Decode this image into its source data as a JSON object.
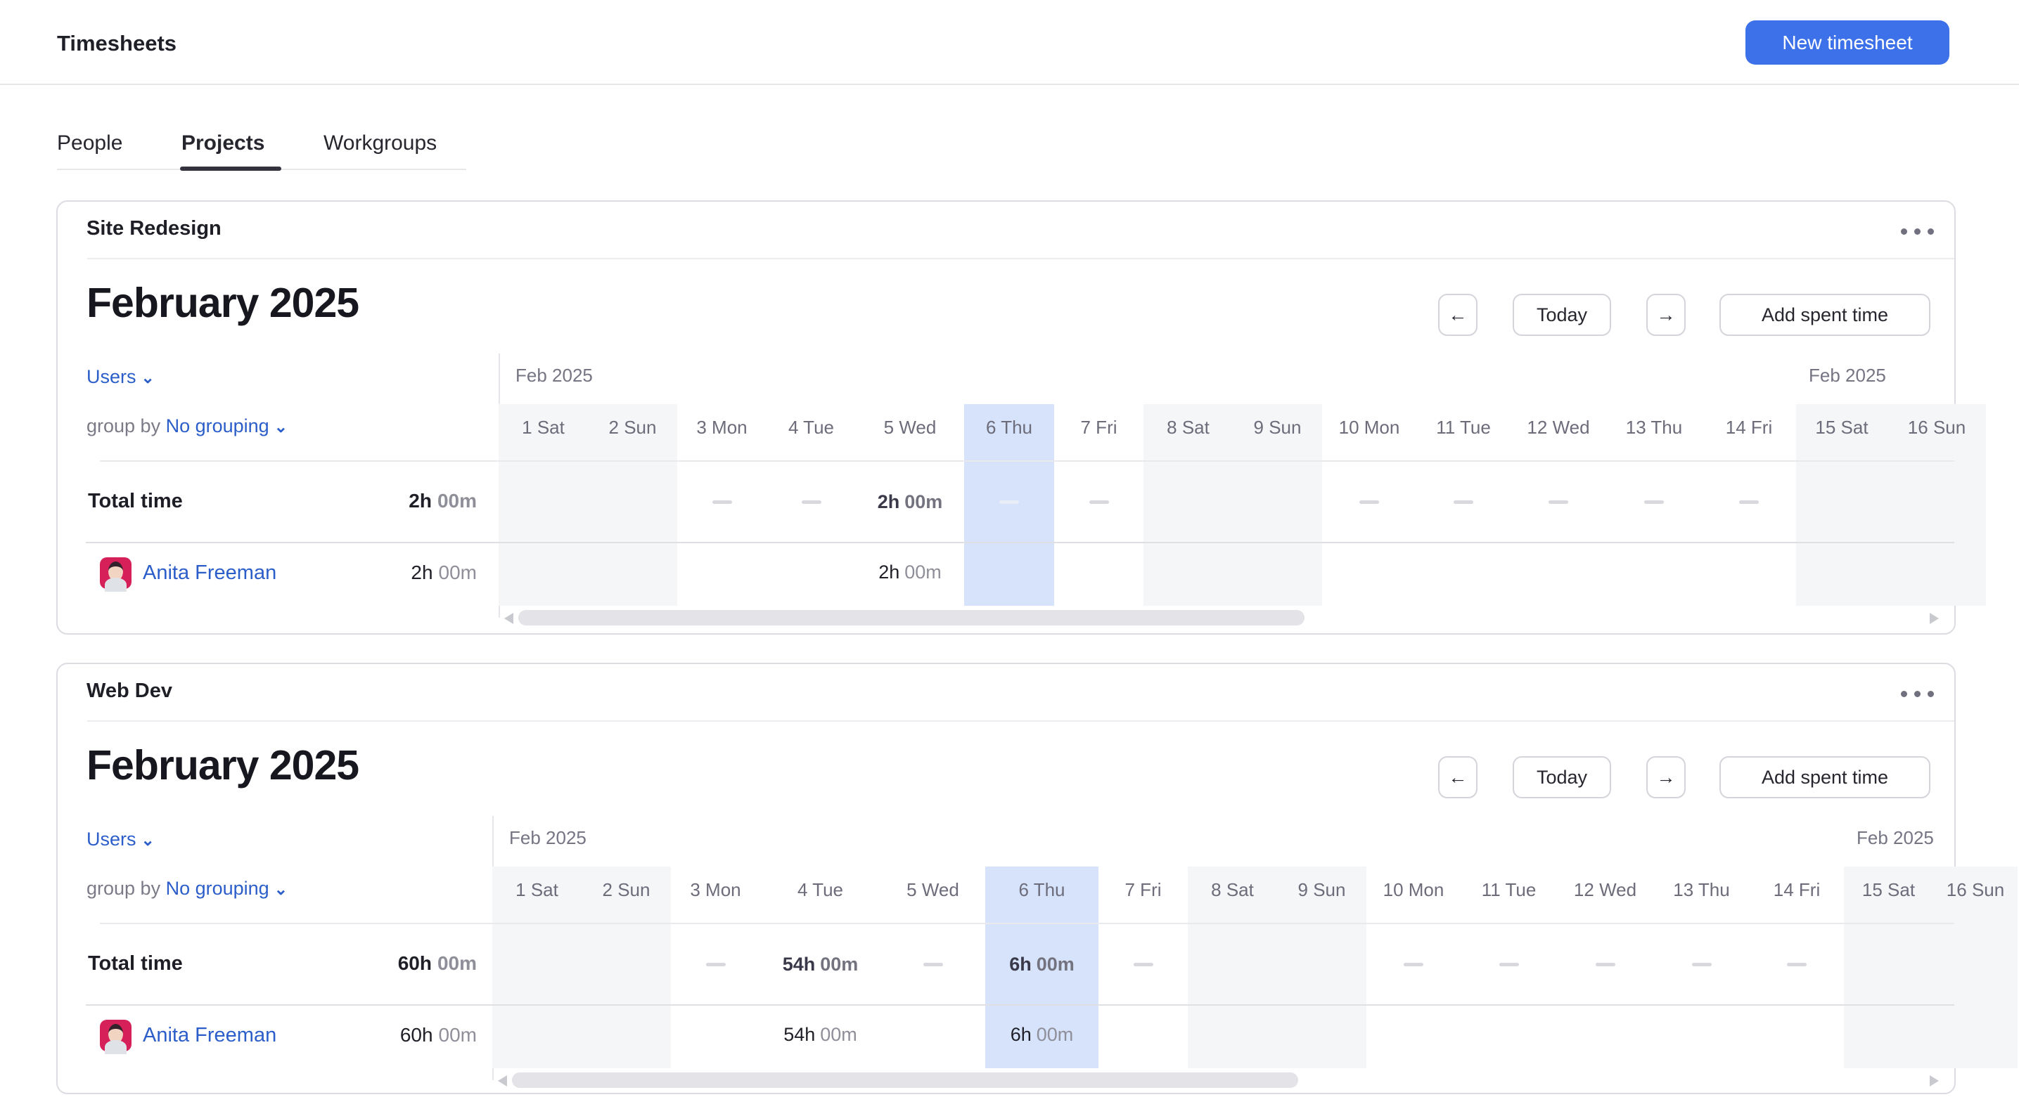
{
  "header": {
    "title": "Timesheets",
    "new_timesheet_label": "New timesheet"
  },
  "tabs": [
    {
      "label": "People",
      "active": false
    },
    {
      "label": "Projects",
      "active": true
    },
    {
      "label": "Workgroups",
      "active": false
    }
  ],
  "icons": {
    "chevron_down": "⌄",
    "prev_arrow": "←",
    "next_arrow": "→",
    "kebab_menu": "⋯"
  },
  "cards": [
    {
      "project": "Site Redesign",
      "month_title": "February 2025",
      "toolbar": {
        "prev_icon": "←",
        "today_label": "Today",
        "next_icon": "→",
        "add_time_label": "Add spent time"
      },
      "filters": {
        "users_label": "Users",
        "group_by_label": "group by",
        "grouping_value": "No grouping"
      },
      "grid": {
        "month_label_left": "Feb 2025",
        "month_label_right": "Feb 2025",
        "days": [
          {
            "label": "1 Sat",
            "weekend": true,
            "today": false
          },
          {
            "label": "2 Sun",
            "weekend": true,
            "today": false
          },
          {
            "label": "3 Mon",
            "weekend": false,
            "today": false
          },
          {
            "label": "4 Tue",
            "weekend": false,
            "today": false
          },
          {
            "label": "5 Wed",
            "weekend": false,
            "today": false
          },
          {
            "label": "6 Thu",
            "weekend": false,
            "today": true
          },
          {
            "label": "7 Fri",
            "weekend": false,
            "today": false
          },
          {
            "label": "8 Sat",
            "weekend": true,
            "today": false
          },
          {
            "label": "9 Sun",
            "weekend": true,
            "today": false
          },
          {
            "label": "10 Mon",
            "weekend": false,
            "today": false
          },
          {
            "label": "11 Tue",
            "weekend": false,
            "today": false
          },
          {
            "label": "12 Wed",
            "weekend": false,
            "today": false
          },
          {
            "label": "13 Thu",
            "weekend": false,
            "today": false
          },
          {
            "label": "14 Fri",
            "weekend": false,
            "today": false
          },
          {
            "label": "15 Sat",
            "weekend": true,
            "today": false
          },
          {
            "label": "16 Sun",
            "weekend": true,
            "today": false
          }
        ],
        "total_row": {
          "label": "Total time",
          "total_hours": "2h",
          "total_minutes": "00m",
          "cells": [
            null,
            null,
            {
              "dash": true
            },
            {
              "dash": true
            },
            {
              "hours": "2h",
              "minutes": "00m"
            },
            {
              "dash": true
            },
            {
              "dash": true
            },
            null,
            null,
            {
              "dash": true
            },
            {
              "dash": true
            },
            {
              "dash": true
            },
            {
              "dash": true
            },
            {
              "dash": true
            },
            null,
            null
          ]
        },
        "user_row": {
          "name": "Anita Freeman",
          "total_hours": "2h",
          "total_minutes": "00m",
          "cells": [
            null,
            null,
            null,
            null,
            {
              "hours": "2h",
              "minutes": "00m"
            },
            null,
            null,
            null,
            null,
            null,
            null,
            null,
            null,
            null,
            null,
            null
          ]
        }
      }
    },
    {
      "project": "Web Dev",
      "month_title": "February 2025",
      "toolbar": {
        "prev_icon": "←",
        "today_label": "Today",
        "next_icon": "→",
        "add_time_label": "Add spent time"
      },
      "filters": {
        "users_label": "Users",
        "group_by_label": "group by",
        "grouping_value": "No grouping"
      },
      "grid": {
        "month_label_left": "Feb 2025",
        "month_label_right": "Feb 2025",
        "days": [
          {
            "label": "1 Sat",
            "weekend": true,
            "today": false
          },
          {
            "label": "2 Sun",
            "weekend": true,
            "today": false
          },
          {
            "label": "3 Mon",
            "weekend": false,
            "today": false
          },
          {
            "label": "4 Tue",
            "weekend": false,
            "today": false
          },
          {
            "label": "5 Wed",
            "weekend": false,
            "today": false
          },
          {
            "label": "6 Thu",
            "weekend": false,
            "today": true
          },
          {
            "label": "7 Fri",
            "weekend": false,
            "today": false
          },
          {
            "label": "8 Sat",
            "weekend": true,
            "today": false
          },
          {
            "label": "9 Sun",
            "weekend": true,
            "today": false
          },
          {
            "label": "10 Mon",
            "weekend": false,
            "today": false
          },
          {
            "label": "11 Tue",
            "weekend": false,
            "today": false
          },
          {
            "label": "12 Wed",
            "weekend": false,
            "today": false
          },
          {
            "label": "13 Thu",
            "weekend": false,
            "today": false
          },
          {
            "label": "14 Fri",
            "weekend": false,
            "today": false
          },
          {
            "label": "15 Sat",
            "weekend": true,
            "today": false
          },
          {
            "label": "16 Sun",
            "weekend": true,
            "today": false
          }
        ],
        "total_row": {
          "label": "Total time",
          "total_hours": "60h",
          "total_minutes": "00m",
          "cells": [
            null,
            null,
            {
              "dash": true
            },
            {
              "hours": "54h",
              "minutes": "00m"
            },
            {
              "dash": true
            },
            {
              "hours": "6h",
              "minutes": "00m"
            },
            {
              "dash": true
            },
            null,
            null,
            {
              "dash": true
            },
            {
              "dash": true
            },
            {
              "dash": true
            },
            {
              "dash": true
            },
            {
              "dash": true
            },
            null,
            null
          ]
        },
        "user_row": {
          "name": "Anita Freeman",
          "total_hours": "60h",
          "total_minutes": "00m",
          "cells": [
            null,
            null,
            null,
            {
              "hours": "54h",
              "minutes": "00m"
            },
            null,
            {
              "hours": "6h",
              "minutes": "00m"
            },
            null,
            null,
            null,
            null,
            null,
            null,
            null,
            null,
            null,
            null
          ]
        }
      }
    }
  ],
  "colors": {
    "accent_blue": "#3d71e9",
    "link_blue": "#2c5ec9",
    "today_highlight": "#d7e3fb",
    "weekend_bg": "#f5f6f8"
  }
}
